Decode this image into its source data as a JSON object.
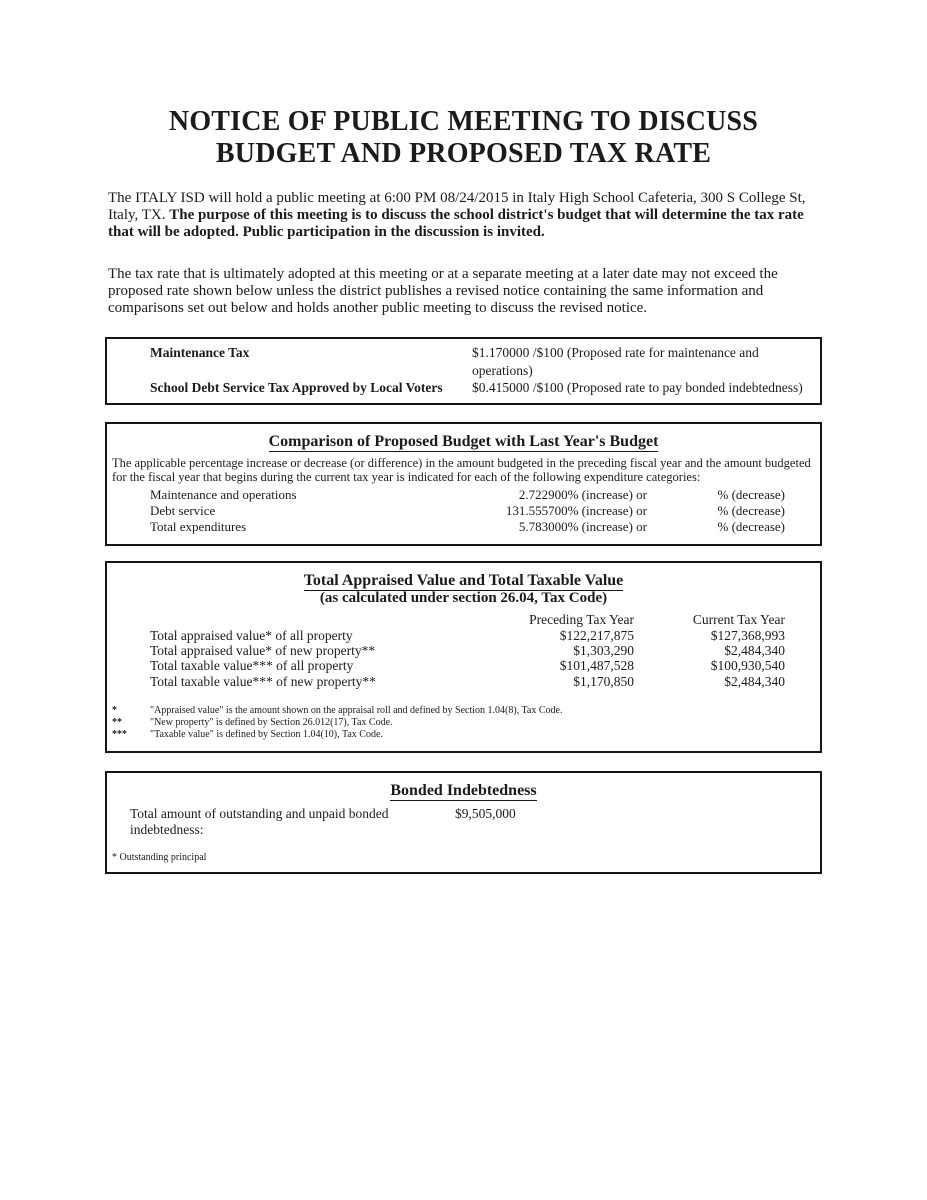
{
  "doc": {
    "title_line1": "NOTICE OF PUBLIC MEETING TO DISCUSS",
    "title_line2": "BUDGET AND PROPOSED TAX RATE",
    "intro_normal": "The ITALY ISD will hold a public meeting at 6:00 PM 08/24/2015 in Italy High School Cafeteria, 300 S College St, Italy, TX. ",
    "intro_bold": "The purpose of this meeting is to discuss the school district's budget that will determine the tax rate that will be adopted. Public participation in the discussion is invited.",
    "rate_paragraph": "The tax rate that is ultimately adopted at this meeting or at a separate meeting at a later date may not exceed the proposed rate shown below unless the district publishes a revised notice containing the same information and comparisons set out below and holds another public meeting to discuss the revised notice."
  },
  "tax_rates": {
    "rows": [
      {
        "label": "Maintenance Tax",
        "value": "$1.170000 /$100 (Proposed rate for maintenance and operations)"
      },
      {
        "label": "School Debt Service Tax Approved by Local Voters",
        "value": "$0.415000 /$100 (Proposed rate to pay bonded indebtedness)"
      }
    ]
  },
  "budget_comparison": {
    "title": "Comparison of Proposed Budget with Last Year's Budget",
    "description": "The applicable percentage increase or decrease (or difference) in the amount budgeted in the preceding fiscal year and the amount budgeted for the fiscal year that begins during the current tax year is indicated for each of the following expenditure categories:",
    "rows": [
      {
        "label": "Maintenance and operations",
        "increase": "2.722900% (increase) or",
        "decrease": "% (decrease)"
      },
      {
        "label": "Debt service",
        "increase": "131.555700% (increase) or",
        "decrease": "% (decrease)"
      },
      {
        "label": "Total expenditures",
        "increase": "5.783000% (increase) or",
        "decrease": "% (decrease)"
      }
    ]
  },
  "appraised_values": {
    "title": "Total Appraised Value and Total Taxable Value",
    "subtitle": "(as calculated under section 26.04, Tax Code)",
    "col_preceding": "Preceding Tax Year",
    "col_current": "Current Tax Year",
    "rows": [
      {
        "label": "Total appraised value* of all property",
        "preceding": "$122,217,875",
        "current": "$127,368,993"
      },
      {
        "label": "Total appraised value* of new property**",
        "preceding": "$1,303,290",
        "current": "$2,484,340"
      },
      {
        "label": "Total taxable value*** of all property",
        "preceding": "$101,487,528",
        "current": "$100,930,540"
      },
      {
        "label": "Total taxable value*** of new property**",
        "preceding": "$1,170,850",
        "current": "$2,484,340"
      }
    ],
    "footnotes": [
      {
        "marker": "*",
        "text": "\"Appraised value\" is the amount shown on the appraisal roll and defined by Section 1.04(8), Tax Code."
      },
      {
        "marker": "**",
        "text": "\"New property\" is defined by Section 26.012(17), Tax Code."
      },
      {
        "marker": "***",
        "text": "\"Taxable value\" is defined by Section 1.04(10), Tax Code."
      }
    ]
  },
  "bonded_indebtedness": {
    "title": "Bonded Indebtedness",
    "label": "Total amount of outstanding and unpaid bonded indebtedness:",
    "value": "$9,505,000",
    "footnote": "* Outstanding principal"
  }
}
